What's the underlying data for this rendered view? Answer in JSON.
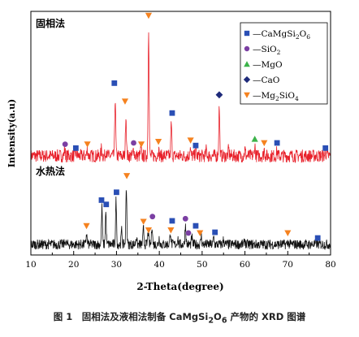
{
  "chart_data": {
    "type": "line",
    "xlabel": "2-Theta(degree)",
    "ylabel": "Intensity(a.u)",
    "xlim": [
      10,
      80
    ],
    "xticks": [
      10,
      20,
      30,
      40,
      50,
      60,
      70,
      80
    ],
    "grid": false,
    "legend_position": "top-right",
    "colors": {
      "solid": "#e8202a",
      "hydro": "#111111"
    },
    "panels": [
      {
        "id": "solid",
        "label": "固相法",
        "baseline_ratio": 0.05,
        "peaks": [
          {
            "x": 17.9,
            "h": 0.05
          },
          {
            "x": 20.6,
            "h": 0.03
          },
          {
            "x": 23.2,
            "h": 0.05
          },
          {
            "x": 26.5,
            "h": 0.06
          },
          {
            "x": 27.6,
            "h": 0.05
          },
          {
            "x": 29.7,
            "h": 0.45
          },
          {
            "x": 32.2,
            "h": 0.32
          },
          {
            "x": 34.0,
            "h": 0.06
          },
          {
            "x": 35.7,
            "h": 0.05
          },
          {
            "x": 37.5,
            "h": 1.0
          },
          {
            "x": 39.8,
            "h": 0.05
          },
          {
            "x": 42.8,
            "h": 0.25
          },
          {
            "x": 47.2,
            "h": 0.06
          },
          {
            "x": 48.5,
            "h": 0.05
          },
          {
            "x": 51.0,
            "h": 0.05
          },
          {
            "x": 54.0,
            "h": 0.38
          },
          {
            "x": 56.2,
            "h": 0.05
          },
          {
            "x": 60.0,
            "h": 0.05
          },
          {
            "x": 62.3,
            "h": 0.08
          },
          {
            "x": 64.5,
            "h": 0.05
          },
          {
            "x": 67.5,
            "h": 0.04
          },
          {
            "x": 78.8,
            "h": 0.03
          }
        ]
      },
      {
        "id": "hydro",
        "label": "水热法",
        "baseline_ratio": 0.07,
        "peaks": [
          {
            "x": 18.0,
            "h": 0.05
          },
          {
            "x": 23.0,
            "h": 0.15
          },
          {
            "x": 26.6,
            "h": 0.52
          },
          {
            "x": 27.5,
            "h": 0.45
          },
          {
            "x": 29.9,
            "h": 0.62
          },
          {
            "x": 31.2,
            "h": 0.2
          },
          {
            "x": 32.3,
            "h": 0.82
          },
          {
            "x": 34.6,
            "h": 0.12
          },
          {
            "x": 36.3,
            "h": 0.22
          },
          {
            "x": 37.4,
            "h": 0.18
          },
          {
            "x": 38.3,
            "h": 0.28
          },
          {
            "x": 40.0,
            "h": 0.1
          },
          {
            "x": 42.6,
            "h": 0.18
          },
          {
            "x": 44.3,
            "h": 0.1
          },
          {
            "x": 46.1,
            "h": 0.28
          },
          {
            "x": 47.6,
            "h": 0.1
          },
          {
            "x": 49.8,
            "h": 0.12
          },
          {
            "x": 52.7,
            "h": 0.1
          },
          {
            "x": 55.0,
            "h": 0.07
          },
          {
            "x": 60.0,
            "h": 0.06
          },
          {
            "x": 70.0,
            "h": 0.04
          },
          {
            "x": 76.6,
            "h": 0.03
          }
        ]
      }
    ],
    "legend": [
      {
        "symbol": "square",
        "color": "#2a4fb5",
        "label": "CaMgSi",
        "sub1": "2",
        "mid": "O",
        "sub2": "6"
      },
      {
        "symbol": "circle",
        "color": "#7b3fa3",
        "label": "SiO",
        "sub1": "2"
      },
      {
        "symbol": "triangle-up",
        "color": "#3cb34a",
        "label": "MgO"
      },
      {
        "symbol": "diamond",
        "color": "#1e2a7a",
        "label": "CaO"
      },
      {
        "symbol": "triangle-down",
        "color": "#f5821f",
        "label": "Mg",
        "sub1": "2",
        "mid": "SiO",
        "sub2": "4"
      }
    ],
    "markers": [
      {
        "panel": "solid",
        "x": 18.0,
        "y": 0.09,
        "symbol": "circle"
      },
      {
        "panel": "solid",
        "x": 20.5,
        "y": 0.06,
        "symbol": "square"
      },
      {
        "panel": "solid",
        "x": 23.2,
        "y": 0.09,
        "symbol": "triangle-down"
      },
      {
        "panel": "solid",
        "x": 29.5,
        "y": 0.56,
        "symbol": "square"
      },
      {
        "panel": "solid",
        "x": 32.0,
        "y": 0.42,
        "symbol": "triangle-down"
      },
      {
        "panel": "solid",
        "x": 34.0,
        "y": 0.1,
        "symbol": "circle"
      },
      {
        "panel": "solid",
        "x": 35.8,
        "y": 0.09,
        "symbol": "triangle-down"
      },
      {
        "panel": "solid",
        "x": 37.5,
        "y": 1.08,
        "symbol": "triangle-down"
      },
      {
        "panel": "solid",
        "x": 39.8,
        "y": 0.11,
        "symbol": "triangle-down"
      },
      {
        "panel": "solid",
        "x": 43.0,
        "y": 0.33,
        "symbol": "square"
      },
      {
        "panel": "solid",
        "x": 47.3,
        "y": 0.12,
        "symbol": "triangle-down"
      },
      {
        "panel": "solid",
        "x": 48.5,
        "y": 0.08,
        "symbol": "square"
      },
      {
        "panel": "solid",
        "x": 54.0,
        "y": 0.47,
        "symbol": "diamond"
      },
      {
        "panel": "solid",
        "x": 62.3,
        "y": 0.13,
        "symbol": "triangle-up"
      },
      {
        "panel": "solid",
        "x": 64.5,
        "y": 0.1,
        "symbol": "triangle-down"
      },
      {
        "panel": "solid",
        "x": 67.5,
        "y": 0.1,
        "symbol": "square"
      },
      {
        "panel": "solid",
        "x": 78.8,
        "y": 0.06,
        "symbol": "square"
      },
      {
        "panel": "hydro",
        "x": 23.0,
        "y": 0.26,
        "symbol": "triangle-down"
      },
      {
        "panel": "hydro",
        "x": 26.5,
        "y": 0.62,
        "symbol": "square"
      },
      {
        "panel": "hydro",
        "x": 27.6,
        "y": 0.56,
        "symbol": "square"
      },
      {
        "panel": "hydro",
        "x": 30.0,
        "y": 0.73,
        "symbol": "square"
      },
      {
        "panel": "hydro",
        "x": 32.4,
        "y": 0.96,
        "symbol": "triangle-down"
      },
      {
        "panel": "hydro",
        "x": 36.3,
        "y": 0.32,
        "symbol": "triangle-down"
      },
      {
        "panel": "hydro",
        "x": 37.5,
        "y": 0.2,
        "symbol": "triangle-down"
      },
      {
        "panel": "hydro",
        "x": 38.4,
        "y": 0.39,
        "symbol": "circle"
      },
      {
        "panel": "hydro",
        "x": 42.7,
        "y": 0.2,
        "symbol": "triangle-down"
      },
      {
        "panel": "hydro",
        "x": 43.0,
        "y": 0.33,
        "symbol": "square"
      },
      {
        "panel": "hydro",
        "x": 46.1,
        "y": 0.36,
        "symbol": "circle"
      },
      {
        "panel": "hydro",
        "x": 46.8,
        "y": 0.16,
        "symbol": "circle"
      },
      {
        "panel": "hydro",
        "x": 48.5,
        "y": 0.26,
        "symbol": "square"
      },
      {
        "panel": "hydro",
        "x": 49.5,
        "y": 0.16,
        "symbol": "triangle-down"
      },
      {
        "panel": "hydro",
        "x": 53.0,
        "y": 0.17,
        "symbol": "square"
      },
      {
        "panel": "hydro",
        "x": 70.0,
        "y": 0.16,
        "symbol": "triangle-down"
      },
      {
        "panel": "hydro",
        "x": 77.0,
        "y": 0.09,
        "symbol": "square"
      }
    ]
  },
  "caption": {
    "figure_no": "图 1",
    "text": "固相法及液相法制备 CaMgSi",
    "sub1": "2",
    "mid": "O",
    "sub2": "6",
    "suffix": " 产物的 XRD 图谱"
  }
}
